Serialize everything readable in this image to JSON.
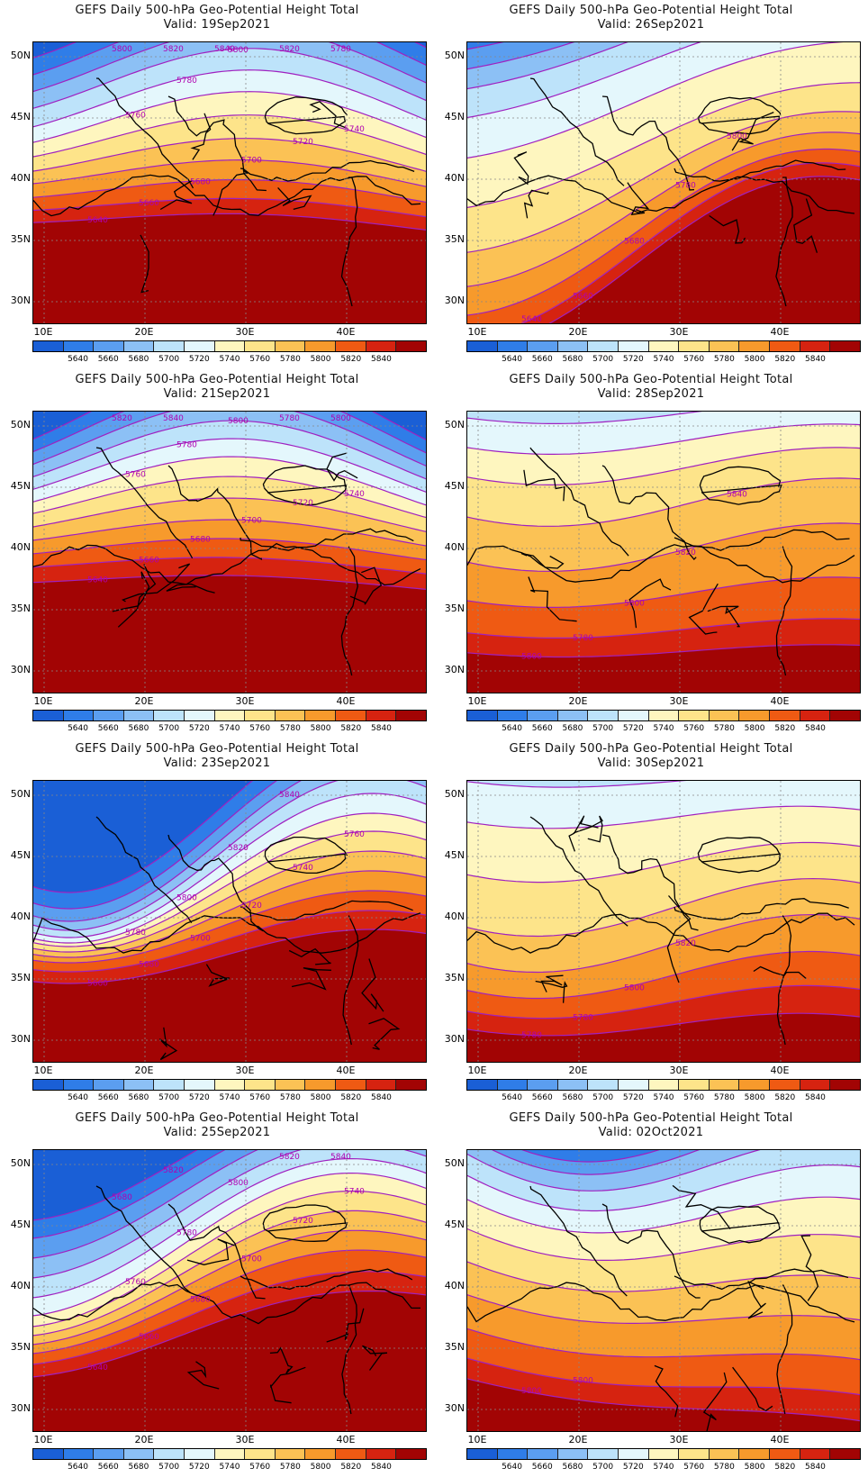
{
  "map_title": "GEFS Daily 500-hPa Geo-Potential Height Total",
  "panels": [
    {
      "valid": "Valid:  19Sep2021"
    },
    {
      "valid": "Valid:  26Sep2021"
    },
    {
      "valid": "Valid:  21Sep2021"
    },
    {
      "valid": "Valid:  28Sep2021"
    },
    {
      "valid": "Valid:  23Sep2021"
    },
    {
      "valid": "Valid:  30Sep2021"
    },
    {
      "valid": "Valid:  25Sep2021"
    },
    {
      "valid": "Valid:  02Oct2021"
    }
  ],
  "lat_labels": [
    "50N",
    "45N",
    "40N",
    "35N",
    "30N"
  ],
  "lon_labels": [
    "10E",
    "20E",
    "30E",
    "40E"
  ],
  "colorbar_labels": [
    "5640",
    "5660",
    "5680",
    "5700",
    "5720",
    "5740",
    "5760",
    "5780",
    "5800",
    "5820",
    "5840"
  ],
  "colorbar_colors": [
    "#1a5fd6",
    "#2f7de8",
    "#5b9ef0",
    "#8cc0f5",
    "#bde3fa",
    "#e4f7fc",
    "#fef6bf",
    "#fde48a",
    "#fbc255",
    "#f79a2c",
    "#ef5a13",
    "#d62310",
    "#a20404"
  ],
  "contour_labels": [
    [
      "5640",
      "5660",
      "5680",
      "5700",
      "5720",
      "5740",
      "5760",
      "5780",
      "5800",
      "5820",
      "5780",
      "5800",
      "5820",
      "5840"
    ],
    [
      "5640",
      "5660",
      "5680",
      "5780",
      "5800"
    ],
    [
      "5640",
      "5660",
      "5680",
      "5700",
      "5720",
      "5740",
      "5760",
      "5780",
      "5800",
      "5780",
      "5800",
      "5820",
      "5840"
    ],
    [
      "5800",
      "5780",
      "5800",
      "5820",
      "5840"
    ],
    [
      "5660",
      "5680",
      "5700",
      "5720",
      "5740",
      "5760",
      "5780",
      "5800",
      "5820",
      "5840"
    ],
    [
      "5780",
      "5780",
      "5800",
      "5820"
    ],
    [
      "5640",
      "5660",
      "5680",
      "5700",
      "5720",
      "5740",
      "5760",
      "5780",
      "5800",
      "5820",
      "5840",
      "5680",
      "5820"
    ],
    [
      "5800",
      "5800"
    ]
  ]
}
